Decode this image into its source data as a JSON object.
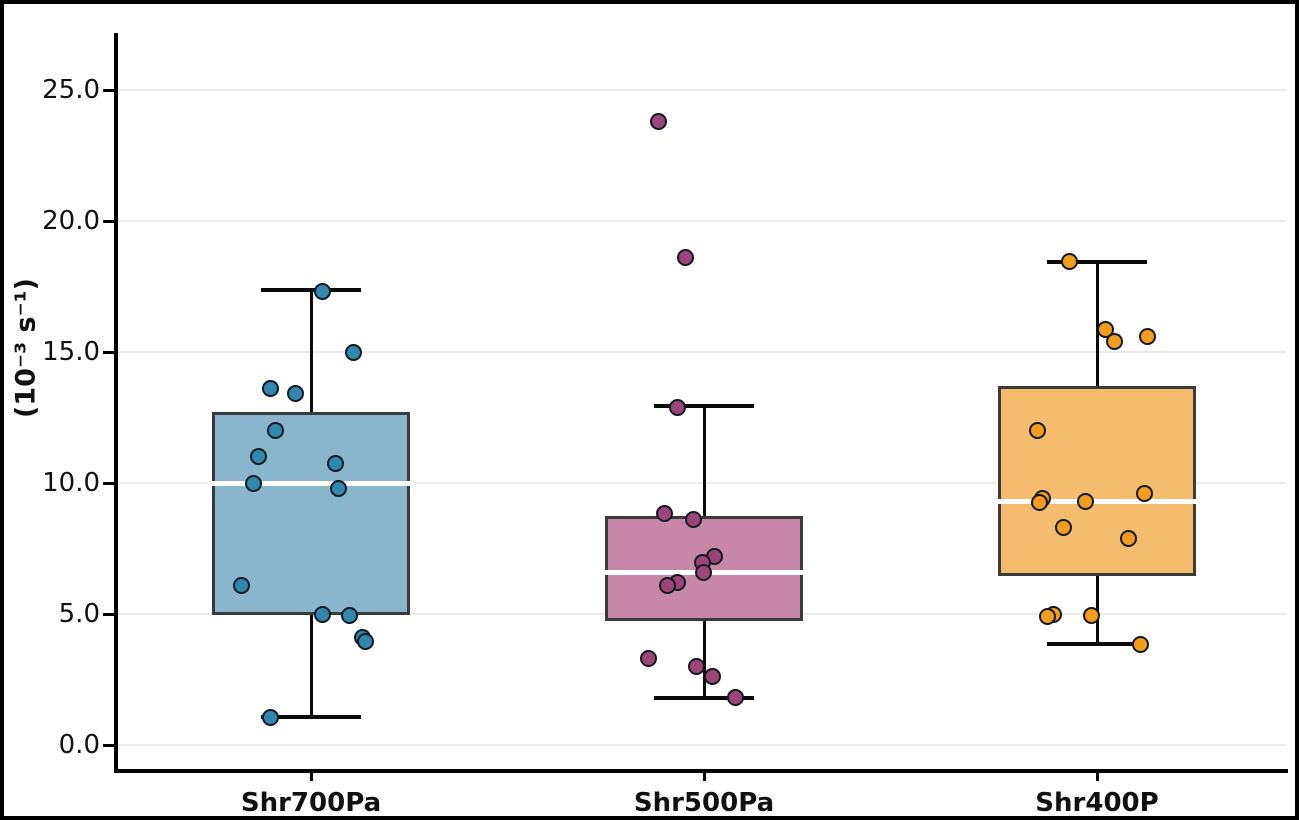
{
  "chart_data": {
    "type": "boxplot",
    "title": "",
    "xlabel": "",
    "ylabel": "(10⁻³ s⁻¹)",
    "ylim": [
      -1.03,
      27.18
    ],
    "yticks": [
      0,
      5,
      10,
      15,
      20,
      25
    ],
    "ytick_labels": [
      "0.0",
      "5.0",
      "10.0",
      "15.0",
      "20.0",
      "25.0"
    ],
    "grid": "horizontal",
    "legend": "none",
    "categories": [
      "Shr700Pa",
      "Shr500Pa",
      "Shr400P"
    ],
    "series": [
      {
        "name": "Shr700Pa",
        "box_fill": "#8ab6cd",
        "point_fill": "#3187ad",
        "stats": {
          "whisker_low": 1.05,
          "q1": 4.95,
          "median": 10.0,
          "q3": 12.7,
          "whisker_high": 17.35
        },
        "points": [
          {
            "value": 17.3,
            "jitter": 11
          },
          {
            "value": 15.0,
            "jitter": 42
          },
          {
            "value": 13.6,
            "jitter": -41
          },
          {
            "value": 13.4,
            "jitter": -16
          },
          {
            "value": 12.0,
            "jitter": -36
          },
          {
            "value": 11.0,
            "jitter": -53
          },
          {
            "value": 10.75,
            "jitter": 24
          },
          {
            "value": 10.0,
            "jitter": -58
          },
          {
            "value": 9.8,
            "jitter": 27
          },
          {
            "value": 6.1,
            "jitter": -70
          },
          {
            "value": 5.0,
            "jitter": 11
          },
          {
            "value": 4.95,
            "jitter": 38
          },
          {
            "value": 4.1,
            "jitter": 51
          },
          {
            "value": 3.95,
            "jitter": 54
          },
          {
            "value": 1.05,
            "jitter": -41
          }
        ]
      },
      {
        "name": "Shr500Pa",
        "box_fill": "#c687a8",
        "point_fill": "#9d4577",
        "stats": {
          "whisker_low": 1.8,
          "q1": 4.73,
          "median": 6.6,
          "q3": 8.75,
          "whisker_high": 12.93
        },
        "points": [
          {
            "value": 23.8,
            "jitter": -46
          },
          {
            "value": 18.6,
            "jitter": -19
          },
          {
            "value": 12.9,
            "jitter": -27
          },
          {
            "value": 8.85,
            "jitter": -40
          },
          {
            "value": 8.6,
            "jitter": -11
          },
          {
            "value": 7.2,
            "jitter": 10
          },
          {
            "value": 6.95,
            "jitter": -2
          },
          {
            "value": 6.6,
            "jitter": -1
          },
          {
            "value": 6.2,
            "jitter": -27
          },
          {
            "value": 6.1,
            "jitter": -37
          },
          {
            "value": 3.3,
            "jitter": -56
          },
          {
            "value": 3.0,
            "jitter": -8
          },
          {
            "value": 2.6,
            "jitter": 8
          },
          {
            "value": 1.8,
            "jitter": 31
          }
        ]
      },
      {
        "name": "Shr400P",
        "box_fill": "#f5bc6d",
        "point_fill": "#f39c1d",
        "stats": {
          "whisker_low": 3.85,
          "q1": 6.45,
          "median": 9.3,
          "q3": 13.7,
          "whisker_high": 18.45
        },
        "points": [
          {
            "value": 18.45,
            "jitter": -28
          },
          {
            "value": 15.85,
            "jitter": 8
          },
          {
            "value": 15.6,
            "jitter": 50
          },
          {
            "value": 15.4,
            "jitter": 17
          },
          {
            "value": 12.0,
            "jitter": -60
          },
          {
            "value": 9.6,
            "jitter": 47
          },
          {
            "value": 9.4,
            "jitter": -55
          },
          {
            "value": 9.3,
            "jitter": -12
          },
          {
            "value": 9.25,
            "jitter": -58
          },
          {
            "value": 8.3,
            "jitter": -34
          },
          {
            "value": 7.9,
            "jitter": 31
          },
          {
            "value": 5.0,
            "jitter": -44
          },
          {
            "value": 4.95,
            "jitter": -6
          },
          {
            "value": 4.9,
            "jitter": -50
          },
          {
            "value": 3.85,
            "jitter": 43
          }
        ]
      }
    ],
    "colors": {
      "box_edge": "#3b3b3b",
      "whisker": "#0a0a0a",
      "median": "#ffffff",
      "gridline": "#ececec",
      "axis": "#000000",
      "frame": "#000000"
    }
  }
}
